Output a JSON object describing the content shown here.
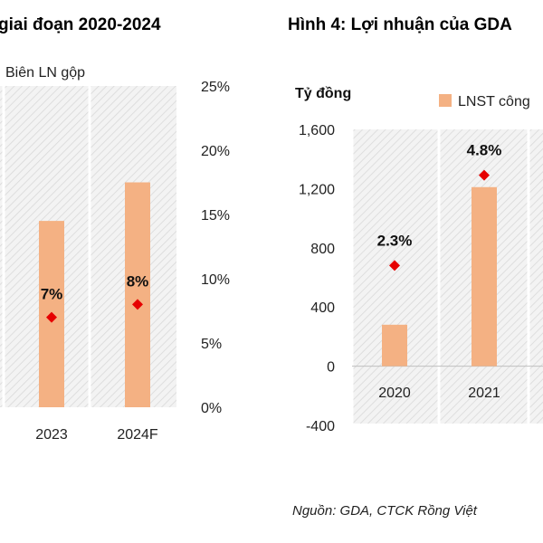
{
  "chart_data": [
    {
      "type": "bar",
      "title": "giai đoạn 2020-2024",
      "legend": [
        "Biên LN gộp"
      ],
      "categories": [
        "2023",
        "2024F"
      ],
      "series": [
        {
          "kind": "bar",
          "values": [
            null,
            null
          ]
        },
        {
          "name": "Biên LN gộp",
          "kind": "marker",
          "axis": "right",
          "values": [
            7,
            8
          ],
          "labels": [
            "7%",
            "8%"
          ]
        }
      ],
      "y2_ticks": [
        "0%",
        "5%",
        "10%",
        "15%",
        "20%",
        "25%"
      ],
      "y2lim": [
        0,
        25
      ],
      "bar_heights_percent_axis": [
        14.5,
        17.5
      ],
      "colors": {
        "bar": "#F4B183",
        "marker": "#E60000"
      }
    },
    {
      "type": "bar",
      "title": "Hình 4: Lợi nhuận của GDA",
      "ylabel": "Tỷ đồng",
      "legend": [
        "LNST công"
      ],
      "categories": [
        "2020",
        "2021"
      ],
      "series": [
        {
          "name": "LNST công",
          "kind": "bar",
          "values": [
            280,
            1210
          ]
        },
        {
          "kind": "marker",
          "axis": "right",
          "values_on_left_scale": [
            680,
            1290
          ],
          "labels": [
            "2.3%",
            "4.8%"
          ]
        }
      ],
      "y_ticks": [
        "-400",
        "0",
        "400",
        "800",
        "1,200",
        "1,600"
      ],
      "ylim": [
        -400,
        1600
      ],
      "colors": {
        "bar": "#F4B183",
        "marker": "#E60000"
      }
    }
  ],
  "source_note": "Nguồn: GDA, CTCK Rồng Việt",
  "bottom_partial_text": ""
}
